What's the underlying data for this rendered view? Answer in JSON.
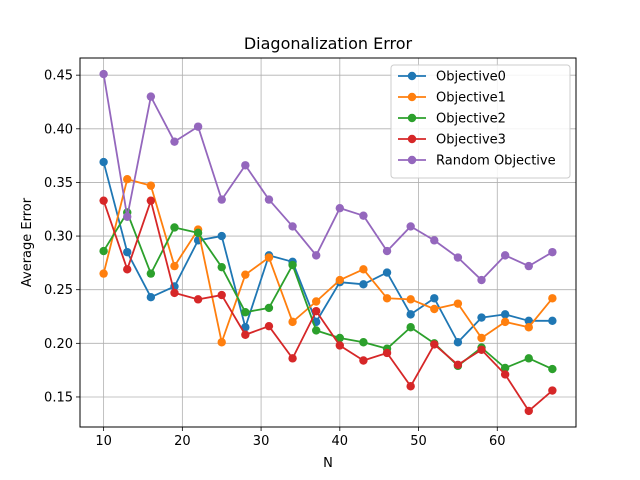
{
  "chart_data": {
    "type": "line",
    "title": "Diagonalization Error",
    "xlabel": "N",
    "ylabel": "Average Error",
    "xlim": [
      7,
      70
    ],
    "ylim": [
      0.122,
      0.466
    ],
    "xticks": [
      10,
      20,
      30,
      40,
      50,
      60
    ],
    "yticks": [
      0.15,
      0.2,
      0.25,
      0.3,
      0.35,
      0.4,
      0.45
    ],
    "xtick_labels": [
      "10",
      "20",
      "30",
      "40",
      "50",
      "60"
    ],
    "ytick_labels": [
      "0.15",
      "0.20",
      "0.25",
      "0.30",
      "0.35",
      "0.40",
      "0.45"
    ],
    "grid": true,
    "legend_position": "top-right",
    "x": [
      10,
      13,
      16,
      19,
      22,
      25,
      28,
      31,
      34,
      37,
      40,
      43,
      46,
      49,
      52,
      55,
      58,
      61,
      64,
      67
    ],
    "series": [
      {
        "name": "Objective0",
        "color": "#1f77b4",
        "values": [
          0.369,
          0.285,
          0.243,
          0.253,
          0.296,
          0.3,
          0.215,
          0.282,
          0.276,
          0.22,
          0.257,
          0.255,
          0.266,
          0.227,
          0.242,
          0.201,
          0.224,
          0.227,
          0.221,
          0.221
        ]
      },
      {
        "name": "Objective1",
        "color": "#ff7f0e",
        "values": [
          0.265,
          0.353,
          0.347,
          0.272,
          0.306,
          0.201,
          0.264,
          0.28,
          0.22,
          0.239,
          0.259,
          0.269,
          0.242,
          0.241,
          0.232,
          0.237,
          0.205,
          0.22,
          0.215,
          0.242
        ]
      },
      {
        "name": "Objective2",
        "color": "#2ca02c",
        "values": [
          0.286,
          0.322,
          0.265,
          0.308,
          0.303,
          0.271,
          0.229,
          0.233,
          0.273,
          0.212,
          0.205,
          0.201,
          0.195,
          0.215,
          0.2,
          0.179,
          0.196,
          0.177,
          0.186,
          0.176
        ]
      },
      {
        "name": "Objective3",
        "color": "#d62728",
        "values": [
          0.333,
          0.269,
          0.333,
          0.247,
          0.241,
          0.245,
          0.208,
          0.216,
          0.186,
          0.23,
          0.198,
          0.184,
          0.191,
          0.16,
          0.199,
          0.18,
          0.194,
          0.171,
          0.137,
          0.156
        ]
      },
      {
        "name": "Random Objective",
        "color": "#9467bd",
        "values": [
          0.451,
          0.318,
          0.43,
          0.388,
          0.402,
          0.334,
          0.366,
          0.334,
          0.309,
          0.282,
          0.326,
          0.319,
          0.286,
          0.309,
          0.296,
          0.28,
          0.259,
          0.282,
          0.272,
          0.285
        ]
      }
    ]
  }
}
